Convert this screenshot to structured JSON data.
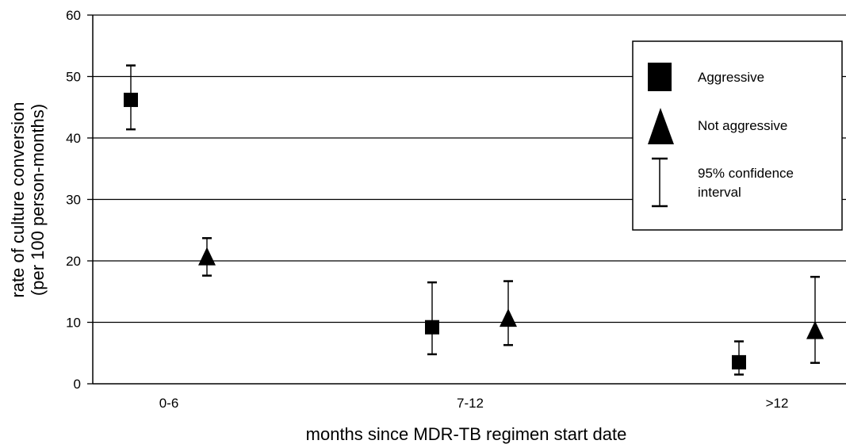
{
  "chart_data": {
    "type": "scatter",
    "title": "",
    "xlabel": "months since MDR-TB regimen start date",
    "ylabel_line1": "rate of culture conversion",
    "ylabel_line2": "(per 100 person-months)",
    "ylim": [
      0,
      60
    ],
    "y_ticks": [
      "0",
      "10",
      "20",
      "30",
      "40",
      "50",
      "60"
    ],
    "y_tick_values": [
      0,
      10,
      20,
      30,
      40,
      50,
      60
    ],
    "categories": [
      "0-6",
      "7-12",
      ">12"
    ],
    "grid": "horizontal",
    "legend_position": "top-right",
    "series": [
      {
        "name": "Aggressive",
        "marker": "square",
        "values": [
          46.2,
          9.2,
          3.5
        ],
        "ci_low": [
          41.4,
          4.8,
          1.5
        ],
        "ci_high": [
          51.8,
          16.5,
          6.9
        ]
      },
      {
        "name": "Not aggressive",
        "marker": "triangle",
        "values": [
          20.3,
          10.3,
          8.3
        ],
        "ci_low": [
          17.6,
          6.3,
          3.4
        ],
        "ci_high": [
          23.7,
          16.7,
          17.4
        ]
      }
    ],
    "legend_ci_line1": "95% confidence",
    "legend_ci_line2": "interval",
    "colors": {
      "marker": "#000000",
      "grid": "#000000",
      "background": "#ffffff"
    }
  }
}
